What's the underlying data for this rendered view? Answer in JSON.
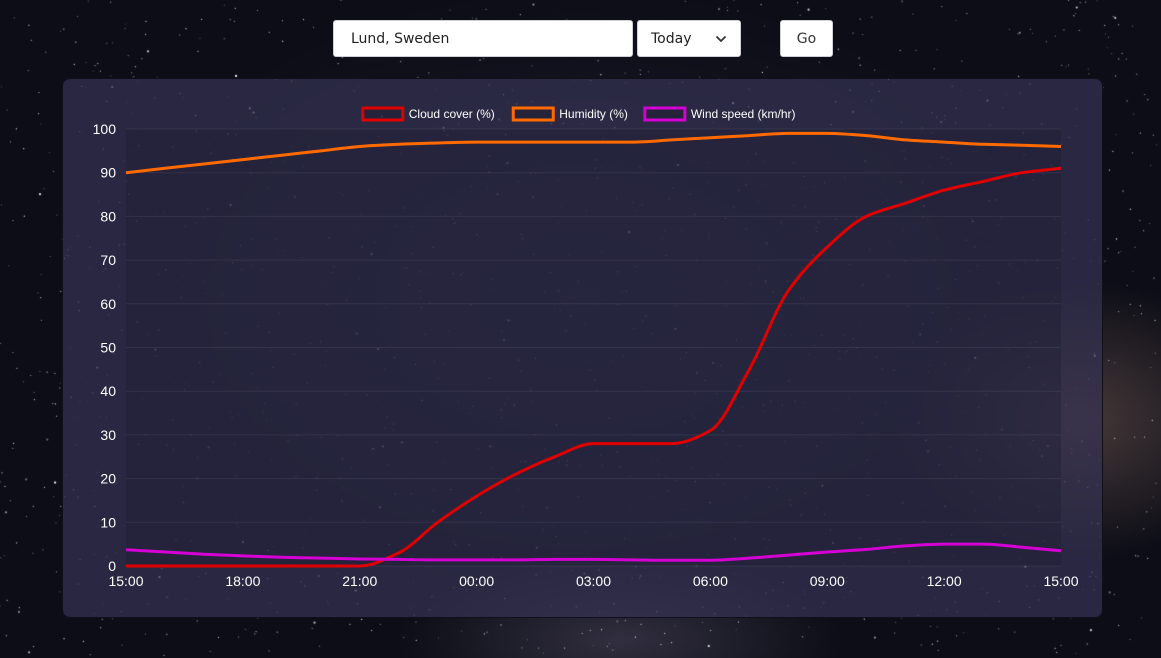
{
  "search": {
    "location_value": "Lund, Sweden"
  },
  "day_select": {
    "selected": "Today"
  },
  "go_button": {
    "label": "Go"
  },
  "colors": {
    "cloud_cover": "#e00000",
    "humidity": "#ff6a00",
    "wind_speed": "#d400d4",
    "axis_text": "#ffffff"
  },
  "chart_data": {
    "type": "line",
    "categories": [
      "15:00",
      "18:00",
      "21:00",
      "00:00",
      "03:00",
      "06:00",
      "09:00",
      "12:00",
      "15:00"
    ],
    "x": [
      "15:00",
      "16:00",
      "17:00",
      "18:00",
      "19:00",
      "20:00",
      "21:00",
      "22:00",
      "23:00",
      "00:00",
      "01:00",
      "02:00",
      "03:00",
      "04:00",
      "05:00",
      "06:00",
      "07:00",
      "08:00",
      "09:00",
      "10:00",
      "11:00",
      "12:00",
      "13:00",
      "14:00",
      "15:00"
    ],
    "series": [
      {
        "name": "Cloud cover (%)",
        "values": [
          0,
          0,
          0,
          0,
          0,
          0,
          0,
          3,
          10,
          16,
          21,
          25,
          28,
          28,
          28,
          31,
          45,
          63,
          73,
          80,
          83,
          86,
          88,
          90,
          91
        ]
      },
      {
        "name": "Humidity (%)",
        "values": [
          90,
          91,
          92,
          93,
          94,
          95,
          96,
          96.5,
          96.8,
          97,
          97,
          97,
          97,
          97,
          97.5,
          98,
          98.5,
          99,
          99,
          98.5,
          97.5,
          97,
          96.5,
          96.3,
          96
        ]
      },
      {
        "name": "Wind speed (km/hr)",
        "values": [
          3.7,
          3.2,
          2.7,
          2.3,
          2.0,
          1.8,
          1.6,
          1.5,
          1.4,
          1.4,
          1.4,
          1.5,
          1.5,
          1.4,
          1.3,
          1.3,
          1.8,
          2.5,
          3.2,
          3.8,
          4.6,
          5.0,
          5.0,
          4.3,
          3.5
        ]
      }
    ],
    "ylim": [
      0,
      100
    ],
    "yticks": [
      0,
      10,
      20,
      30,
      40,
      50,
      60,
      70,
      80,
      90,
      100
    ],
    "legend": "top-center",
    "grid": true
  }
}
